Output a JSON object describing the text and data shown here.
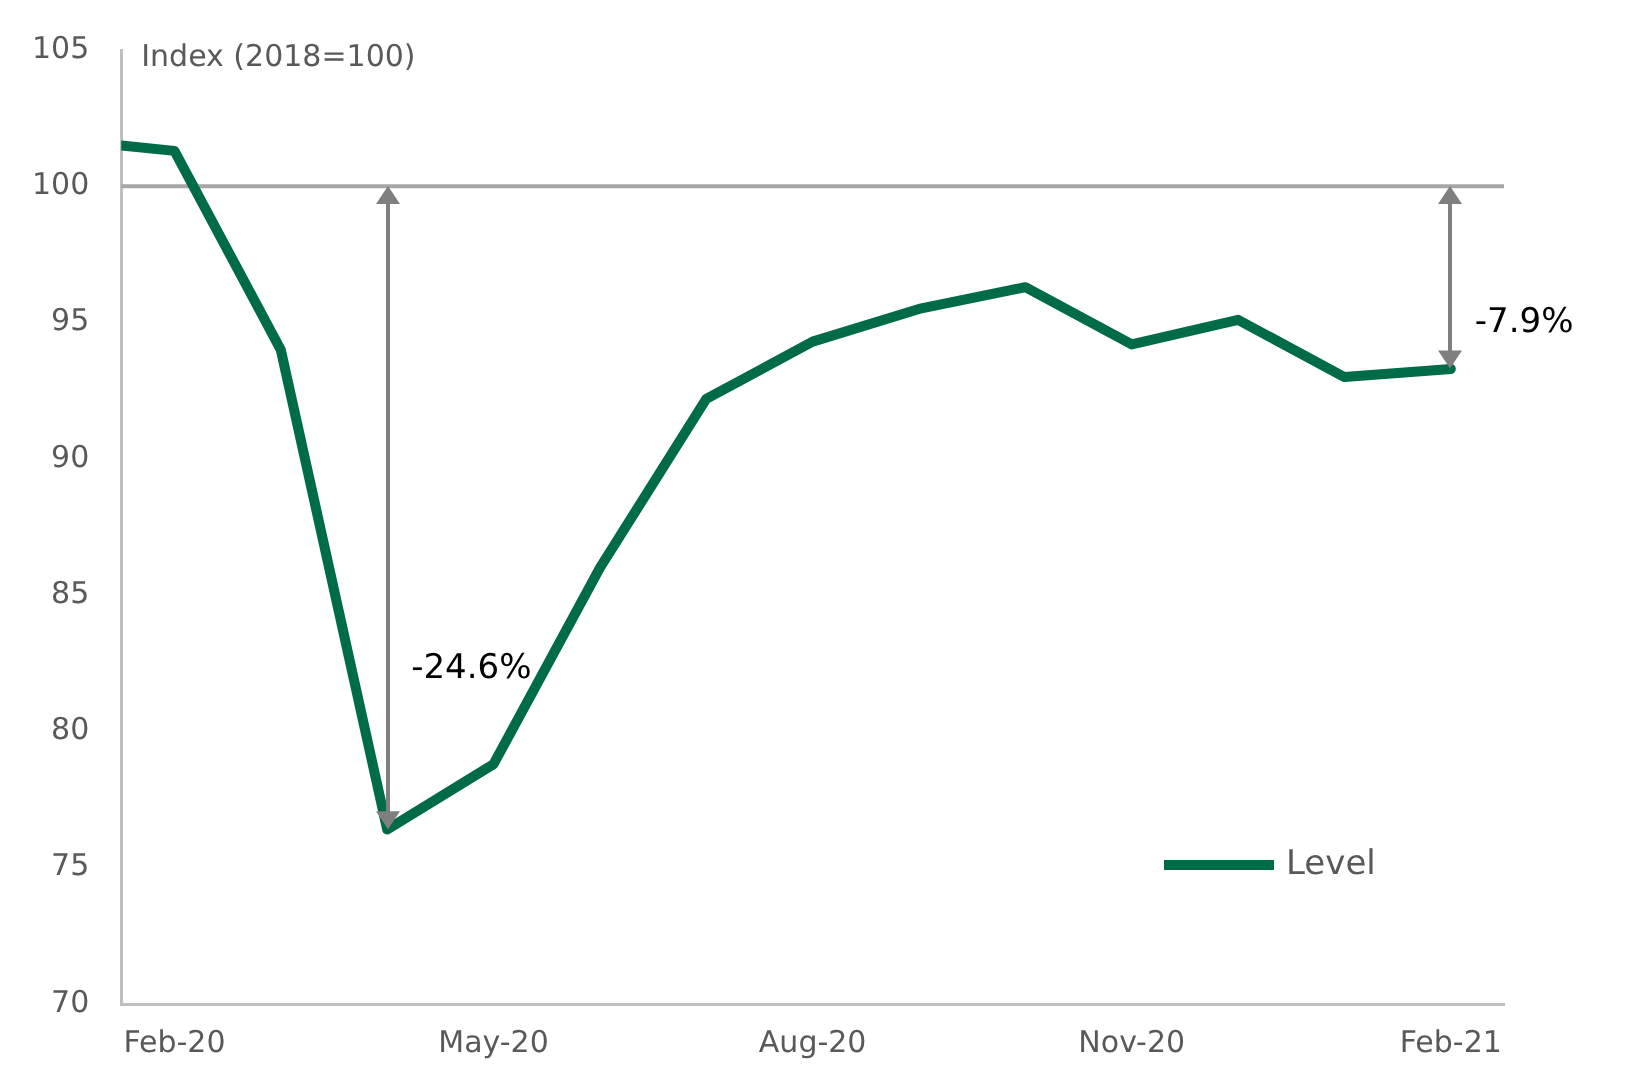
{
  "chart_data": {
    "type": "line",
    "ylabel": "Index (2018=100)",
    "x": [
      "2020-01-16",
      "2020-02",
      "2020-03",
      "2020-04",
      "2020-05",
      "2020-06",
      "2020-07",
      "2020-08",
      "2020-09",
      "2020-10",
      "2020-11",
      "2020-12",
      "2021-01",
      "2021-02"
    ],
    "series": [
      {
        "name": "Level",
        "color": "#006b47",
        "values": [
          101.5,
          101.3,
          94.0,
          76.4,
          78.8,
          86.0,
          92.2,
          94.3,
          95.5,
          96.3,
          94.2,
          95.1,
          93.0,
          93.3
        ]
      }
    ],
    "xlim": [
      "2020-01-16",
      "2021-02-16"
    ],
    "xticks": [
      {
        "value": "2020-02",
        "label": "Feb-20"
      },
      {
        "value": "2020-05",
        "label": "May-20"
      },
      {
        "value": "2020-08",
        "label": "Aug-20"
      },
      {
        "value": "2020-11",
        "label": "Nov-20"
      },
      {
        "value": "2021-02",
        "label": "Feb-21"
      }
    ],
    "ylim": [
      70,
      105
    ],
    "yticks": [
      70,
      75,
      80,
      85,
      90,
      95,
      100,
      105
    ],
    "ref_lines": [
      {
        "axis": "y",
        "value": 100,
        "color": "#a6a6a6"
      }
    ],
    "annotations": [
      "-24.6%",
      {
        "text": "-7.9%",
        "x": "2021-02",
        "y": 93.3
      }
    ],
    "grid": false,
    "legend": "bottom right",
    "marker": "none",
    "line_style": "solid"
  }
}
